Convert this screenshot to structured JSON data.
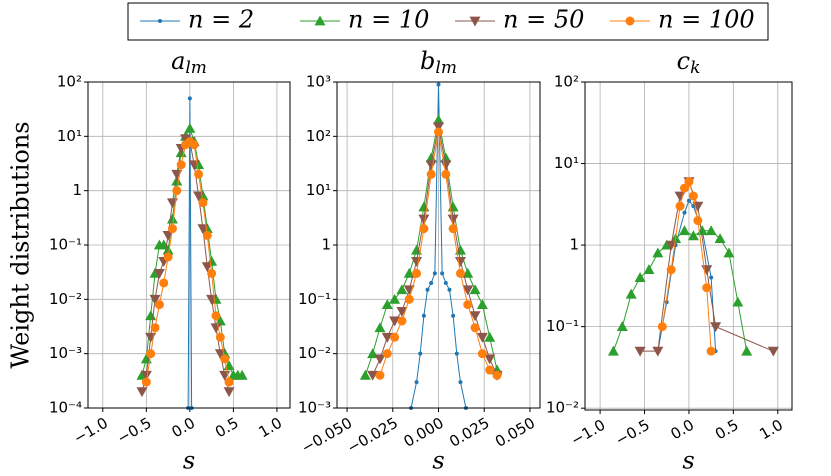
{
  "chart_data": [
    {
      "type": "line",
      "title": "a",
      "title_sub": "lm",
      "xlabel": "s",
      "ylabel": "Weight distributions",
      "yscale": "log",
      "grid": true,
      "legend": "top",
      "xlim": [
        -1.17,
        1.15
      ],
      "ylim": [
        0.0001,
        100
      ],
      "xticks": [
        {
          "value": -1,
          "label": "−1.0"
        },
        {
          "value": -0.5,
          "label": "−0.5"
        },
        {
          "value": 0,
          "label": "0.0"
        },
        {
          "value": 0.5,
          "label": "0.5"
        },
        {
          "value": 1,
          "label": "1.0"
        }
      ],
      "yticks": [
        {
          "value": 0.0001,
          "label": "10⁻⁴"
        },
        {
          "value": 0.001,
          "label": "10⁻³"
        },
        {
          "value": 0.01,
          "label": "10⁻²"
        },
        {
          "value": 0.1,
          "label": "10⁻¹"
        },
        1,
        {
          "value": 10,
          "label": "10¹"
        },
        {
          "value": 100,
          "label": "10²"
        }
      ],
      "series": [
        {
          "name": "n = 2",
          "color": "#1f77b4",
          "marker": "dot",
          "x": [
            -0.02,
            0,
            0.02
          ],
          "values": [
            0.0001,
            50,
            0.0001
          ]
        },
        {
          "name": "n = 10",
          "color": "#2ca02c",
          "marker": "triangle-up",
          "x": [
            -0.55,
            -0.5,
            -0.45,
            -0.4,
            -0.35,
            -0.3,
            -0.25,
            -0.2,
            -0.15,
            -0.1,
            -0.05,
            0,
            0.05,
            0.1,
            0.15,
            0.2,
            0.25,
            0.3,
            0.35,
            0.4,
            0.45,
            0.5,
            0.55,
            0.6
          ],
          "values": [
            0.0004,
            0.0008,
            0.005,
            0.03,
            0.1,
            0.1,
            0.08,
            0.3,
            1.5,
            5,
            10,
            14,
            8,
            3,
            0.8,
            0.2,
            0.05,
            0.01,
            0.004,
            0.001,
            0.0006,
            0.0004,
            0.0004,
            0.0004
          ]
        },
        {
          "name": "n = 50",
          "color": "#8c564b",
          "marker": "triangle-down",
          "x": [
            -0.55,
            -0.5,
            -0.45,
            -0.4,
            -0.35,
            -0.3,
            -0.25,
            -0.2,
            -0.15,
            -0.1,
            -0.05,
            0,
            0.05,
            0.1,
            0.15,
            0.2,
            0.25,
            0.3,
            0.35,
            0.4,
            0.45
          ],
          "values": [
            0.0002,
            0.0004,
            0.002,
            0.01,
            0.03,
            0.05,
            0.15,
            0.6,
            2,
            6,
            9,
            8,
            3,
            0.8,
            0.2,
            0.04,
            0.01,
            0.003,
            0.001,
            0.0004,
            0.0002
          ]
        },
        {
          "name": "n = 100",
          "color": "#ff7f0e",
          "marker": "circle",
          "x": [
            -0.5,
            -0.45,
            -0.4,
            -0.35,
            -0.3,
            -0.25,
            -0.2,
            -0.15,
            -0.1,
            -0.05,
            0,
            0.05,
            0.1,
            0.15,
            0.2,
            0.25,
            0.3,
            0.35,
            0.4,
            0.45
          ],
          "values": [
            0.0003,
            0.001,
            0.003,
            0.008,
            0.02,
            0.06,
            0.2,
            1,
            3,
            7,
            8,
            7,
            2,
            0.6,
            0.15,
            0.03,
            0.005,
            0.002,
            0.0008,
            0.0003
          ]
        }
      ]
    },
    {
      "type": "line",
      "title": "b",
      "title_sub": "lm",
      "xlabel": "s",
      "yscale": "log",
      "grid": true,
      "xlim": [
        -0.0555,
        0.0555
      ],
      "ylim": [
        0.001,
        1000
      ],
      "xticks": [
        {
          "value": -0.05,
          "label": "−0.050"
        },
        {
          "value": -0.025,
          "label": "−0.025"
        },
        {
          "value": 0,
          "label": "0.000"
        },
        {
          "value": 0.025,
          "label": "0.025"
        },
        {
          "value": 0.05,
          "label": "0.050"
        }
      ],
      "yticks": [
        {
          "value": 0.001,
          "label": "10⁻³"
        },
        {
          "value": 0.01,
          "label": "10⁻²"
        },
        {
          "value": 0.1,
          "label": "10⁻¹"
        },
        1,
        {
          "value": 10,
          "label": "10¹"
        },
        {
          "value": 100,
          "label": "10²"
        },
        {
          "value": 1000,
          "label": "10³"
        }
      ],
      "series": [
        {
          "name": "n = 2",
          "color": "#1f77b4",
          "marker": "dot",
          "x": [
            -0.015,
            -0.012,
            -0.01,
            -0.008,
            -0.006,
            -0.004,
            -0.002,
            0,
            0.002,
            0.004,
            0.006,
            0.008,
            0.01,
            0.012,
            0.015
          ],
          "values": [
            0.001,
            0.003,
            0.01,
            0.05,
            0.15,
            0.2,
            0.3,
            900,
            0.3,
            0.2,
            0.15,
            0.05,
            0.01,
            0.003,
            0.001
          ]
        },
        {
          "name": "n = 10",
          "color": "#2ca02c",
          "marker": "triangle-up",
          "x": [
            -0.04,
            -0.036,
            -0.032,
            -0.028,
            -0.024,
            -0.02,
            -0.016,
            -0.012,
            -0.008,
            -0.004,
            0,
            0.004,
            0.008,
            0.012,
            0.016,
            0.02,
            0.024,
            0.028,
            0.032
          ],
          "values": [
            0.004,
            0.01,
            0.03,
            0.08,
            0.1,
            0.15,
            0.3,
            0.8,
            5,
            40,
            200,
            40,
            5,
            0.8,
            0.3,
            0.15,
            0.08,
            0.02,
            0.005
          ]
        },
        {
          "name": "n = 50",
          "color": "#8c564b",
          "marker": "triangle-down",
          "x": [
            -0.036,
            -0.032,
            -0.028,
            -0.024,
            -0.02,
            -0.016,
            -0.012,
            -0.008,
            -0.004,
            0,
            0.004,
            0.008,
            0.012,
            0.016,
            0.02,
            0.024,
            0.028,
            0.032
          ],
          "values": [
            0.004,
            0.008,
            0.02,
            0.04,
            0.06,
            0.15,
            0.5,
            3,
            30,
            150,
            30,
            3,
            0.5,
            0.15,
            0.05,
            0.02,
            0.008,
            0.004
          ]
        },
        {
          "name": "n = 100",
          "color": "#ff7f0e",
          "marker": "circle",
          "x": [
            -0.032,
            -0.028,
            -0.024,
            -0.02,
            -0.016,
            -0.012,
            -0.008,
            -0.004,
            0,
            0.004,
            0.008,
            0.012,
            0.016,
            0.02,
            0.024,
            0.028,
            0.032
          ],
          "values": [
            0.004,
            0.01,
            0.02,
            0.04,
            0.1,
            0.3,
            2,
            20,
            120,
            20,
            2,
            0.3,
            0.08,
            0.03,
            0.01,
            0.005,
            0.004
          ]
        }
      ]
    },
    {
      "type": "line",
      "title": "c",
      "title_sub": "k",
      "xlabel": "s",
      "yscale": "log",
      "grid": true,
      "xlim": [
        -1.17,
        1.16
      ],
      "ylim": [
        0.0095,
        100
      ],
      "xticks": [
        {
          "value": -1,
          "label": "−1.0"
        },
        {
          "value": -0.5,
          "label": "−0.5"
        },
        {
          "value": 0,
          "label": "0.0"
        },
        {
          "value": 0.5,
          "label": "0.5"
        },
        {
          "value": 1,
          "label": "1.0"
        }
      ],
      "yticks": [
        {
          "value": 0.01,
          "label": "10⁻²"
        },
        {
          "value": 0.1,
          "label": "10⁻¹"
        },
        1,
        {
          "value": 10,
          "label": "10¹"
        },
        {
          "value": 100,
          "label": "10²"
        }
      ],
      "series": [
        {
          "name": "n = 2",
          "color": "#1f77b4",
          "marker": "dot",
          "x": [
            -0.35,
            -0.25,
            -0.15,
            -0.05,
            0,
            0.05,
            0.15,
            0.25,
            0.3
          ],
          "values": [
            0.05,
            0.2,
            1,
            2.5,
            3.5,
            3,
            1.5,
            0.4,
            0.05
          ]
        },
        {
          "name": "n = 10",
          "color": "#2ca02c",
          "marker": "triangle-up",
          "x": [
            -0.85,
            -0.75,
            -0.65,
            -0.55,
            -0.45,
            -0.35,
            -0.25,
            -0.15,
            -0.05,
            0.05,
            0.15,
            0.25,
            0.35,
            0.45,
            0.55,
            0.65
          ],
          "values": [
            0.05,
            0.1,
            0.25,
            0.4,
            0.5,
            0.8,
            1,
            1.2,
            1.5,
            1.3,
            1.5,
            1.5,
            1.2,
            0.8,
            0.2,
            0.05
          ]
        },
        {
          "name": "n = 50",
          "color": "#8c564b",
          "marker": "triangle-down",
          "x": [
            -0.55,
            -0.35,
            -0.2,
            -0.1,
            0,
            0.1,
            0.2,
            0.3,
            0.95
          ],
          "values": [
            0.05,
            0.05,
            1,
            4,
            6,
            3,
            0.5,
            0.1,
            0.05
          ]
        },
        {
          "name": "n = 100",
          "color": "#ff7f0e",
          "marker": "circle",
          "x": [
            -0.3,
            -0.2,
            -0.1,
            -0.05,
            0,
            0.05,
            0.1,
            0.2,
            0.25
          ],
          "values": [
            0.1,
            0.5,
            3,
            5,
            6,
            4,
            2,
            0.3,
            0.05
          ]
        }
      ]
    }
  ]
}
